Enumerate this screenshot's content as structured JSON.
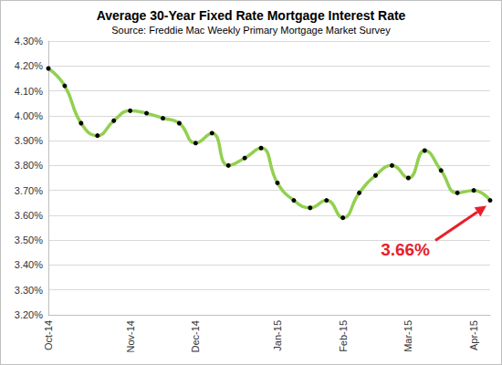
{
  "chart_data": {
    "type": "line",
    "title": "Average 30-Year Fixed Rate Mortgage Interest Rate",
    "subtitle": "Source: Freddie Mac Weekly Primary Mortgage Market Survey",
    "categories": [
      "Oct-14",
      null,
      null,
      null,
      null,
      "Nov-14",
      null,
      null,
      null,
      "Dec-14",
      null,
      null,
      null,
      null,
      "Jan-15",
      null,
      null,
      null,
      "Feb-15",
      null,
      null,
      null,
      "Mar-15",
      null,
      null,
      null,
      "Apr-15",
      null
    ],
    "series": [
      {
        "name": "Average 30-Year Fixed Rate",
        "color": "#92d050",
        "marker": "circle",
        "values": [
          4.19,
          4.12,
          3.97,
          3.92,
          3.98,
          4.02,
          4.01,
          3.99,
          3.97,
          3.89,
          3.93,
          3.8,
          3.83,
          3.87,
          3.73,
          3.66,
          3.63,
          3.66,
          3.59,
          3.69,
          3.76,
          3.8,
          3.75,
          3.86,
          3.78,
          3.69,
          3.7,
          3.66
        ]
      }
    ],
    "ylim": [
      3.2,
      4.3
    ],
    "yticks": [
      {
        "value": 3.2,
        "label": "3.20%"
      },
      {
        "value": 3.3,
        "label": "3.30%"
      },
      {
        "value": 3.4,
        "label": "3.40%"
      },
      {
        "value": 3.5,
        "label": "3.50%"
      },
      {
        "value": 3.6,
        "label": "3.60%"
      },
      {
        "value": 3.7,
        "label": "3.70%"
      },
      {
        "value": 3.8,
        "label": "3.80%"
      },
      {
        "value": 3.9,
        "label": "3.90%"
      },
      {
        "value": 4.0,
        "label": "4.00%"
      },
      {
        "value": 4.1,
        "label": "4.10%"
      },
      {
        "value": 4.2,
        "label": "4.20%"
      },
      {
        "value": 4.3,
        "label": "4.30%"
      }
    ],
    "grid": true,
    "annotations": [
      {
        "text": "3.66%",
        "color": "#e8202a"
      }
    ]
  }
}
